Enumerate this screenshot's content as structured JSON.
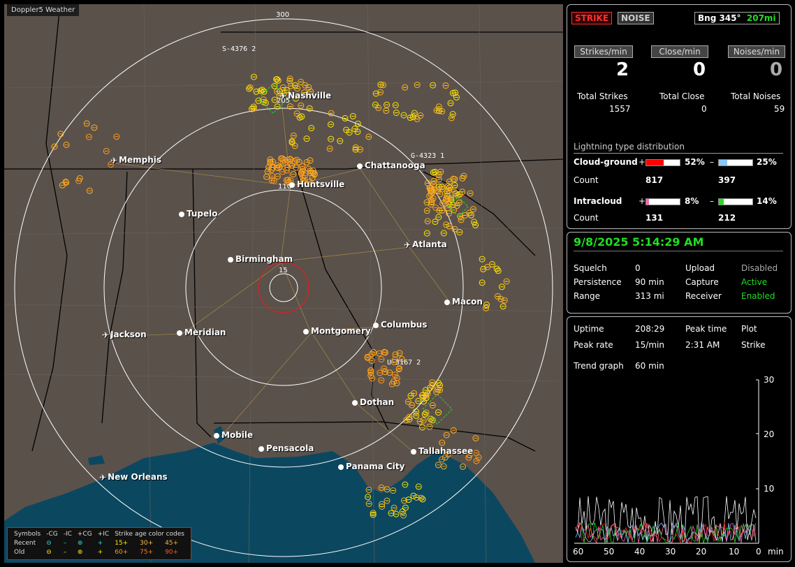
{
  "app_title": "Doppler5 Weather",
  "map": {
    "ring_labels": {
      "r300": "300",
      "r15": "15",
      "r110": "110",
      "r205": "205"
    },
    "cluster_labels": {
      "s4376": "S-4376",
      "s4376b": "2",
      "g4323": "G-4323",
      "g4323b": "1",
      "u3167": "U-3167",
      "u3167b": "2"
    },
    "cities": [
      {
        "name": "Nashville",
        "type": "airport"
      },
      {
        "name": "Memphis",
        "type": "airport"
      },
      {
        "name": "Chattanooga",
        "type": "city"
      },
      {
        "name": "Huntsville",
        "type": "city"
      },
      {
        "name": "Tupelo",
        "type": "city"
      },
      {
        "name": "Birmingham",
        "type": "city"
      },
      {
        "name": "Atlanta",
        "type": "airport"
      },
      {
        "name": "Macon",
        "type": "city"
      },
      {
        "name": "Jackson",
        "type": "airport"
      },
      {
        "name": "Meridian",
        "type": "city"
      },
      {
        "name": "Montgomery",
        "type": "city"
      },
      {
        "name": "Columbus",
        "type": "city"
      },
      {
        "name": "Dothan",
        "type": "city"
      },
      {
        "name": "Mobile",
        "type": "city"
      },
      {
        "name": "Pensacola",
        "type": "city"
      },
      {
        "name": "Tallahassee",
        "type": "city"
      },
      {
        "name": "Panama City",
        "type": "city"
      },
      {
        "name": "New Orleans",
        "type": "airport"
      }
    ],
    "legend": {
      "header": [
        "Symbols",
        "-CG",
        "-IC",
        "+CG",
        "+IC",
        "Strike age color codes"
      ],
      "recent_label": "Recent",
      "old_label": "Old",
      "recent_ages": [
        "15+",
        "30+",
        "45+"
      ],
      "old_ages": [
        "60+",
        "75+",
        "90+"
      ]
    }
  },
  "status": {
    "strike_btn": "STRIKE",
    "noise_btn": "NOISE",
    "bearing": "Bng 345°",
    "distance": "207mi",
    "strikes_min_label": "Strikes/min",
    "close_min_label": "Close/min",
    "noises_min_label": "Noises/min",
    "strikes_min": "2",
    "close_min": "0",
    "noises_min": "0",
    "total_strikes_label": "Total Strikes",
    "total_close_label": "Total Close",
    "total_noises_label": "Total Noises",
    "total_strikes": "1557",
    "total_close": "0",
    "total_noises": "59",
    "dist_title": "Lightning type distribution",
    "cg_label": "Cloud-ground",
    "ic_label": "Intracloud",
    "count_label": "Count",
    "plus": "+",
    "minus": "–",
    "cg_plus_pct": "52%",
    "cg_minus_pct": "25%",
    "ic_plus_pct": "8%",
    "ic_minus_pct": "14%",
    "cg_plus_count": "817",
    "cg_minus_count": "397",
    "ic_plus_count": "131",
    "ic_minus_count": "212",
    "cg_plus_frac": 0.52,
    "cg_minus_frac": 0.25,
    "ic_plus_frac": 0.08,
    "ic_minus_frac": 0.14
  },
  "settings": {
    "datetime": "9/8/2025 5:14:29 AM",
    "squelch_label": "Squelch",
    "squelch": "0",
    "persistence_label": "Persistence",
    "persistence": "90 min",
    "range_label": "Range",
    "range": "313 mi",
    "upload_label": "Upload",
    "upload": "Disabled",
    "capture_label": "Capture",
    "capture": "Active",
    "receiver_label": "Receiver",
    "receiver": "Enabled"
  },
  "stats": {
    "uptime_label": "Uptime",
    "uptime": "208:29",
    "peak_time_label": "Peak time",
    "peak_time": "2:31 AM",
    "plot_label": "Plot",
    "plot": "Strike",
    "peak_rate_label": "Peak rate",
    "peak_rate": "15/min",
    "trend_label": "Trend graph",
    "trend": "60 min",
    "x_ticks": [
      "60",
      "50",
      "40",
      "30",
      "20",
      "10",
      "0"
    ],
    "x_unit": "min",
    "y_ticks": [
      "30",
      "20",
      "10"
    ]
  },
  "colors": {
    "map_bg": "#5a514b",
    "water": "#0c4760",
    "ring": "#ffffff",
    "inner_ring": "#e02020",
    "strike_yellow": "#ffe600",
    "strike_orange": "#ff9a1a",
    "accent_green": "#22dd22",
    "cg_plus_bar": "#ff0000",
    "cg_minus_bar": "#88c8ff",
    "ic_plus_bar": "#ff66aa",
    "ic_minus_bar": "#22dd22"
  }
}
